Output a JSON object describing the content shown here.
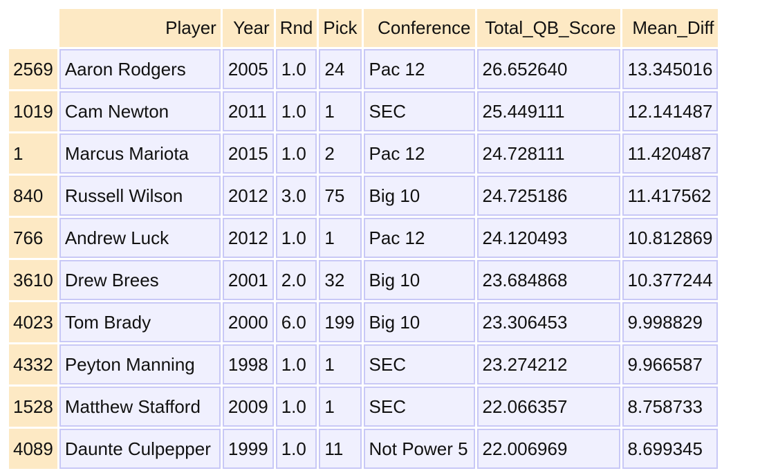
{
  "table": {
    "columns": [
      "Player",
      "Year",
      "Rnd",
      "Pick",
      "Conference",
      "Total_QB_Score",
      "Mean_Diff"
    ],
    "rows": [
      {
        "index": "2569",
        "cells": [
          "Aaron Rodgers",
          "2005",
          "1.0",
          "24",
          "Pac 12",
          "26.652640",
          "13.345016"
        ]
      },
      {
        "index": "1019",
        "cells": [
          "Cam Newton",
          "2011",
          "1.0",
          "1",
          "SEC",
          "25.449111",
          "12.141487"
        ]
      },
      {
        "index": "1",
        "cells": [
          "Marcus Mariota",
          "2015",
          "1.0",
          "2",
          "Pac 12",
          "24.728111",
          "11.420487"
        ]
      },
      {
        "index": "840",
        "cells": [
          "Russell Wilson",
          "2012",
          "3.0",
          "75",
          "Big 10",
          "24.725186",
          "11.417562"
        ]
      },
      {
        "index": "766",
        "cells": [
          "Andrew Luck",
          "2012",
          "1.0",
          "1",
          "Pac 12",
          "24.120493",
          "10.812869"
        ]
      },
      {
        "index": "3610",
        "cells": [
          "Drew Brees",
          "2001",
          "2.0",
          "32",
          "Big 10",
          "23.684868",
          "10.377244"
        ]
      },
      {
        "index": "4023",
        "cells": [
          "Tom Brady",
          "2000",
          "6.0",
          "199",
          "Big 10",
          "23.306453",
          "9.998829"
        ]
      },
      {
        "index": "4332",
        "cells": [
          "Peyton Manning",
          "1998",
          "1.0",
          "1",
          "SEC",
          "23.274212",
          "9.966587"
        ]
      },
      {
        "index": "1528",
        "cells": [
          "Matthew Stafford",
          "2009",
          "1.0",
          "1",
          "SEC",
          "22.066357",
          "8.758733"
        ]
      },
      {
        "index": "4089",
        "cells": [
          "Daunte Culpepper",
          "1999",
          "1.0",
          "11",
          "Not Power 5",
          "22.006969",
          "8.699345"
        ]
      }
    ]
  },
  "colors": {
    "header_bg": "#fde9c4",
    "cell_bg": "#f0f0fe",
    "cell_border": "#c8c8f6"
  }
}
